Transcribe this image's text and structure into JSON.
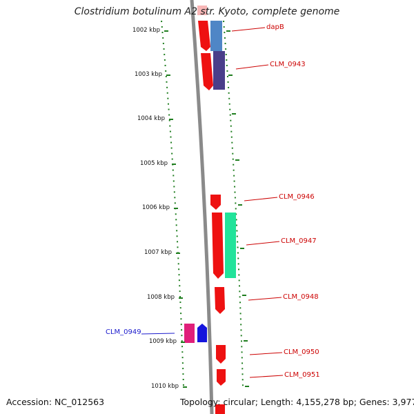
{
  "title": "Clostridium botulinum A2 str. Kyoto, complete genome",
  "accession": "Accession: NC_012563",
  "topology": "Topology: circular; Length: 4,155,278 bp; Genes: 3,977",
  "colors": {
    "backbone": "#8a8a8a",
    "tick": "#1e7d1e",
    "label_red": "#cc0000",
    "label_blue": "#1a1acc",
    "gene_red": "#ee1111"
  },
  "scale_labels": [
    "1002 kbp",
    "1003 kbp",
    "1004 kbp",
    "1005 kbp",
    "1006 kbp",
    "1007 kbp",
    "1008 kbp",
    "1009 kbp",
    "1010 kbp"
  ],
  "genes": [
    {
      "label": "dapB",
      "color": "#ee1111",
      "strand": "minus"
    },
    {
      "label": "CLM_0943",
      "color": "#ee1111",
      "strand": "minus"
    },
    {
      "label": "CLM_0946",
      "color": "#ee1111",
      "strand": "minus"
    },
    {
      "label": "CLM_0947",
      "color": "#ee1111",
      "strand": "minus"
    },
    {
      "label": "CLM_0948",
      "color": "#ee1111",
      "strand": "minus"
    },
    {
      "label": "CLM_0949",
      "color": "#e0207a",
      "strand": "plus"
    },
    {
      "label": "CLM_0950",
      "color": "#ee1111",
      "strand": "minus"
    },
    {
      "label": "CLM_0951",
      "color": "#ee1111",
      "strand": "minus"
    }
  ]
}
